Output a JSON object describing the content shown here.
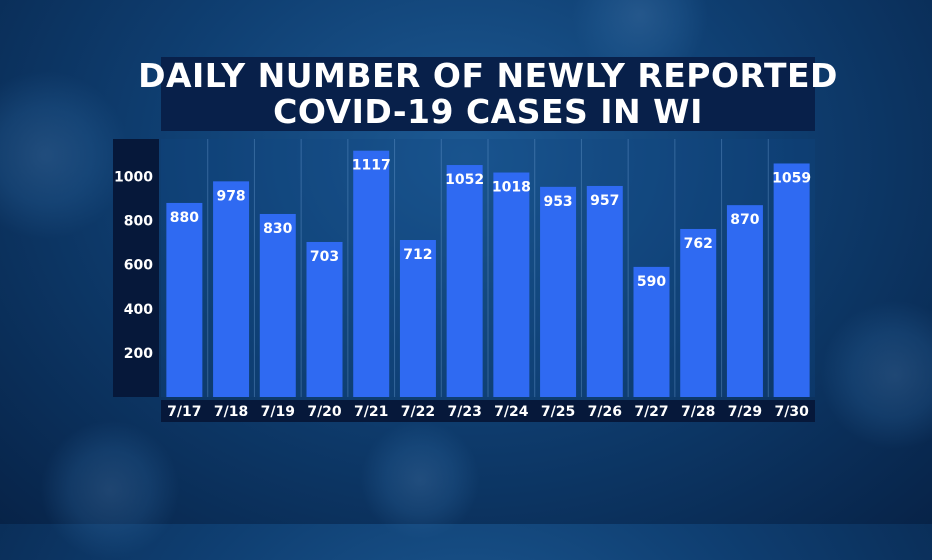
{
  "chart_data": {
    "type": "bar",
    "title_lines": [
      "DAILY NUMBER OF NEWLY REPORTED",
      "COVID-19 CASES IN WI"
    ],
    "categories": [
      "7/17",
      "7/18",
      "7/19",
      "7/20",
      "7/21",
      "7/22",
      "7/23",
      "7/24",
      "7/25",
      "7/26",
      "7/27",
      "7/28",
      "7/29",
      "7/30"
    ],
    "values": [
      880,
      978,
      830,
      703,
      1117,
      712,
      1052,
      1018,
      953,
      957,
      590,
      762,
      870,
      1059
    ],
    "y_ticks": [
      200,
      400,
      600,
      800,
      1000
    ],
    "ylim": [
      0,
      1170
    ],
    "grid": "vertical",
    "bar_color": "#2f6af2",
    "xlabel": "",
    "ylabel": ""
  }
}
